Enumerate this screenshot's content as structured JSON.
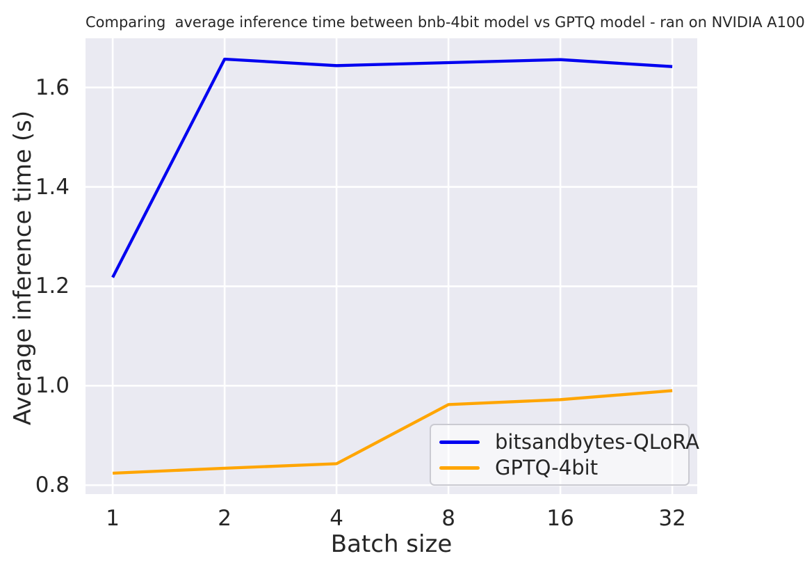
{
  "chart_data": {
    "type": "line",
    "title": "Comparing  average inference time between bnb-4bit model vs GPTQ model - ran on NVIDIA A100",
    "xlabel": "Batch size",
    "ylabel": "Average inference time (s)",
    "x": [
      1,
      2,
      4,
      8,
      16,
      32
    ],
    "xticks": [
      "1",
      "2",
      "4",
      "8",
      "16",
      "32"
    ],
    "x_scale": "log2",
    "yticks": [
      0.8,
      1.0,
      1.2,
      1.4,
      1.6
    ],
    "xlim": [
      0.845,
      37.35
    ],
    "ylim": [
      0.782,
      1.699
    ],
    "grid": true,
    "legend_position": "lower-right",
    "series": [
      {
        "name": "bitsandbytes-QLoRA",
        "color": "#0000f0",
        "values": [
          1.218,
          1.657,
          1.644,
          1.65,
          1.656,
          1.642
        ]
      },
      {
        "name": "GPTQ-4bit",
        "color": "#ffa500",
        "values": [
          0.824,
          0.834,
          0.843,
          0.962,
          0.972,
          0.99
        ]
      }
    ],
    "colors": {
      "figure_background": "#ffffff",
      "plot_background": "#eaeaf2",
      "gridline": "#ffffff",
      "text": "#262626",
      "legend_border": "#cacad1"
    }
  }
}
